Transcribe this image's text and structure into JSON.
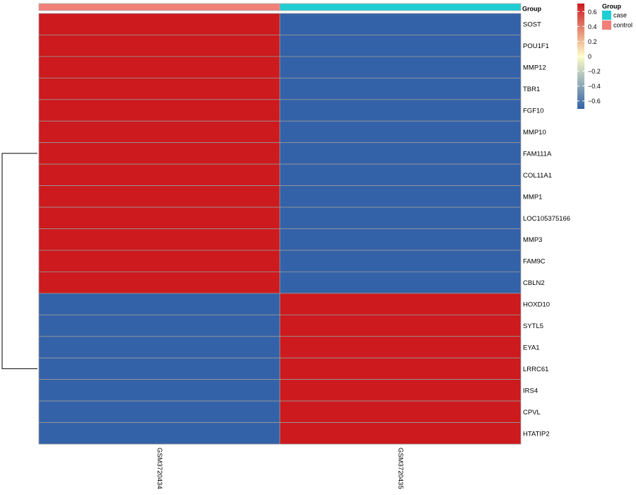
{
  "chart_data": {
    "type": "heatmap",
    "columns": [
      "GSM3720434",
      "GSM3720435"
    ],
    "rows": [
      "SOST",
      "POU1F1",
      "MMP12",
      "TBR1",
      "FGF10",
      "MMP10",
      "FAM111A",
      "COL11A1",
      "MMP1",
      "LOC105375166",
      "MMP3",
      "FAM9C",
      "CBLN2",
      "HOXD10",
      "SYTL5",
      "EYA1",
      "LRRC61",
      "IRS4",
      "CPVL",
      "HTATIP2"
    ],
    "values": [
      [
        0.7071,
        -0.7071
      ],
      [
        0.7071,
        -0.7071
      ],
      [
        0.7071,
        -0.7071
      ],
      [
        0.7071,
        -0.7071
      ],
      [
        0.7071,
        -0.7071
      ],
      [
        0.7071,
        -0.7071
      ],
      [
        0.7071,
        -0.7071
      ],
      [
        0.7071,
        -0.7071
      ],
      [
        0.7071,
        -0.7071
      ],
      [
        0.7071,
        -0.7071
      ],
      [
        0.7071,
        -0.7071
      ],
      [
        0.7071,
        -0.7071
      ],
      [
        0.7071,
        -0.7071
      ],
      [
        -0.7071,
        0.7071
      ],
      [
        -0.7071,
        0.7071
      ],
      [
        -0.7071,
        0.7071
      ],
      [
        -0.7071,
        0.7071
      ],
      [
        -0.7071,
        0.7071
      ],
      [
        -0.7071,
        0.7071
      ],
      [
        -0.7071,
        0.7071
      ]
    ],
    "annotation": {
      "label": "Group",
      "column_groups": [
        "control",
        "case"
      ],
      "legend": [
        {
          "name": "case",
          "color": "#1fcdd3"
        },
        {
          "name": "control",
          "color": "#f08078"
        }
      ]
    },
    "color_scale": {
      "low": "#3462a8",
      "mid": "#fdfdc8",
      "high": "#cc1a1e",
      "range": [
        -0.7071,
        0.7071
      ],
      "ticks": [
        0.6,
        0.4,
        0.2,
        0,
        -0.2,
        -0.4,
        -0.6
      ],
      "tick_labels": [
        "0.6",
        "0.4",
        "0.2",
        "0",
        "−0.2",
        "−0.4",
        "−0.6"
      ]
    },
    "row_dendrogram": {
      "clusters": [
        [
          0,
          12
        ],
        [
          13,
          19
        ]
      ]
    },
    "title": "",
    "xlabel": "",
    "ylabel": ""
  }
}
